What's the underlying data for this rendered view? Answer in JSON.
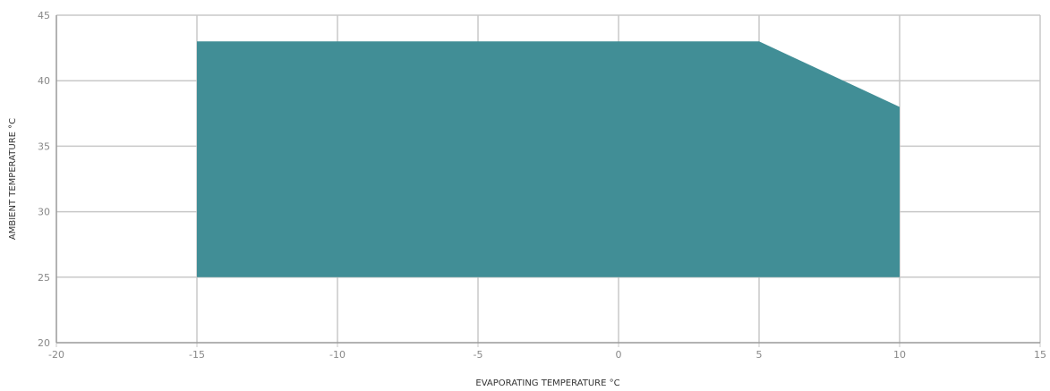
{
  "chart_data": {
    "type": "area",
    "xlabel": "EVAPORATING TEMPERATURE °C",
    "ylabel": "AMBIENT TEMPERATURE °C",
    "xlim": [
      -20,
      15
    ],
    "ylim": [
      20,
      45
    ],
    "x_ticks": [
      "-20",
      "-15",
      "-10",
      "-5",
      "0",
      "5",
      "10",
      "15"
    ],
    "y_ticks": [
      "20",
      "25",
      "30",
      "35",
      "40",
      "45"
    ],
    "grid": true,
    "colors": {
      "fill": "#418E96",
      "grid": "#c8c8c8",
      "axis": "#9a9a9a"
    },
    "envelope": [
      {
        "x": -15,
        "y": 25
      },
      {
        "x": -15,
        "y": 43
      },
      {
        "x": 5,
        "y": 43
      },
      {
        "x": 10,
        "y": 38
      },
      {
        "x": 10,
        "y": 25
      }
    ]
  }
}
